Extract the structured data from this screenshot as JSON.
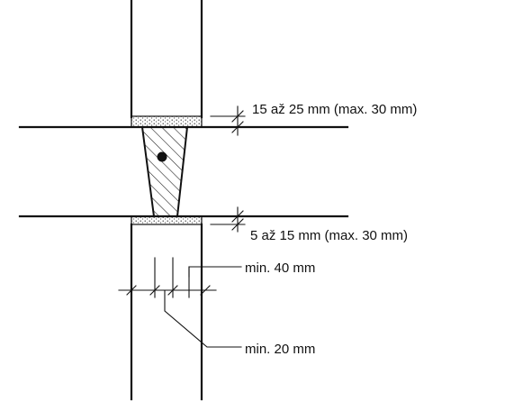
{
  "labels": {
    "top_gap": "15 až 25 mm (max. 30 mm)",
    "bottom_gap": "5 až 15 mm (max. 30 mm)",
    "spacing_40": "min. 40 mm",
    "spacing_20": "min. 20 mm"
  },
  "colors": {
    "ink": "#111111",
    "mortar_fill": "#eeeeee",
    "background": "#ffffff"
  }
}
